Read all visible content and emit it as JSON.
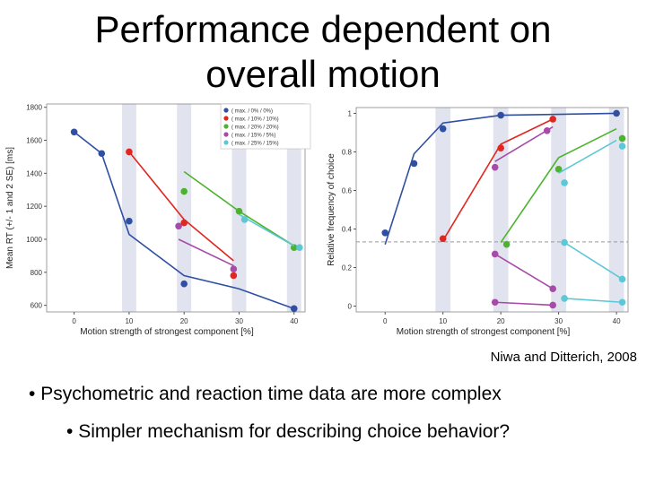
{
  "slide": {
    "title_line1": "Performance dependent on",
    "title_line2": "overall motion",
    "citation": "Niwa and Ditterich, 2008",
    "bullet1": "Psychometric and reaction time data are more complex",
    "bullet2": "Simpler mechanism for describing choice behavior?",
    "bullet_char": "•"
  },
  "colors": {
    "blue": "#2f4fa3",
    "red": "#e0261f",
    "green": "#4cb32e",
    "magenta": "#a84aa8",
    "cyan": "#5cc7d6",
    "band": "#e1e4ee"
  },
  "chart_data": [
    {
      "type": "line",
      "title": "",
      "xlabel": "Motion strength of strongest component [%]",
      "ylabel": "Mean RT (+/- 1 and 2 SE) [ms]",
      "xlim": [
        -5,
        42
      ],
      "ylim": [
        560,
        1820
      ],
      "xticks": [
        0,
        10,
        20,
        30,
        40
      ],
      "yticks": [
        600,
        800,
        1000,
        1200,
        1400,
        1600,
        1800
      ],
      "bands": [
        10,
        20,
        30,
        40
      ],
      "legend": [
        "( max. /  0% /  0%)",
        "( max. / 10% / 10%)",
        "( max. / 20% / 20%)",
        "( max. / 15% /  5%)",
        "( max. / 25% / 15%)"
      ],
      "series": [
        {
          "name": "blue",
          "color_key": "blue",
          "line_x": [
            0,
            5,
            10,
            20,
            30,
            40
          ],
          "line_y": [
            1650,
            1520,
            1030,
            780,
            700,
            580
          ],
          "points_x": [
            0,
            5,
            10,
            20,
            40
          ],
          "points_y": [
            1650,
            1520,
            1110,
            730,
            580
          ]
        },
        {
          "name": "red",
          "color_key": "red",
          "line_x": [
            10,
            20,
            29
          ],
          "line_y": [
            1530,
            1120,
            870
          ],
          "points_x": [
            10,
            20,
            29
          ],
          "points_y": [
            1530,
            1100,
            780
          ]
        },
        {
          "name": "green",
          "color_key": "green",
          "line_x": [
            20,
            30,
            40
          ],
          "line_y": [
            1410,
            1170,
            960
          ],
          "points_x": [
            20,
            30,
            40
          ],
          "points_y": [
            1290,
            1170,
            950
          ]
        },
        {
          "name": "magenta",
          "color_key": "magenta",
          "line_x": [
            19,
            29
          ],
          "line_y": [
            1000,
            840
          ],
          "points_x": [
            19,
            29
          ],
          "points_y": [
            1080,
            820
          ]
        },
        {
          "name": "cyan",
          "color_key": "cyan",
          "line_x": [
            30,
            40
          ],
          "line_y": [
            1150,
            960
          ],
          "points_x": [
            31,
            41
          ],
          "points_y": [
            1120,
            950
          ]
        }
      ]
    },
    {
      "type": "line",
      "title": "",
      "xlabel": "Motion strength of strongest component [%]",
      "ylabel": "Relative frequency of choice",
      "xlim": [
        -5,
        42
      ],
      "ylim": [
        -0.03,
        1.03
      ],
      "xticks": [
        0,
        10,
        20,
        30,
        40
      ],
      "yticks": [
        0,
        0.2,
        0.4,
        0.6,
        0.8,
        1
      ],
      "chance_level": 0.333,
      "bands": [
        10,
        20,
        30,
        40
      ],
      "series": [
        {
          "name": "blue",
          "color_key": "blue",
          "line_x": [
            0,
            5,
            10,
            20,
            30,
            40
          ],
          "line_y": [
            0.32,
            0.79,
            0.95,
            0.99,
            0.995,
            1.0
          ],
          "points_x": [
            0,
            5,
            10,
            20,
            40
          ],
          "points_y": [
            0.38,
            0.74,
            0.92,
            0.99,
            1.0
          ]
        },
        {
          "name": "red-high",
          "color_key": "red",
          "line_x": [
            10,
            20,
            29
          ],
          "line_y": [
            0.34,
            0.84,
            0.97
          ],
          "points_x": [
            10,
            20,
            29
          ],
          "points_y": [
            0.35,
            0.82,
            0.97
          ]
        },
        {
          "name": "green-high",
          "color_key": "green",
          "line_x": [
            20,
            30,
            40
          ],
          "line_y": [
            0.33,
            0.77,
            0.92
          ],
          "points_x": [
            21,
            30,
            41
          ],
          "points_y": [
            0.32,
            0.71,
            0.87
          ]
        },
        {
          "name": "magenta-high",
          "color_key": "magenta",
          "line_x": [
            19,
            29
          ],
          "line_y": [
            0.75,
            0.93
          ],
          "points_x": [
            19,
            28
          ],
          "points_y": [
            0.72,
            0.91
          ]
        },
        {
          "name": "cyan-high",
          "color_key": "cyan",
          "line_x": [
            30,
            40
          ],
          "line_y": [
            0.69,
            0.86
          ],
          "points_x": [
            31,
            41
          ],
          "points_y": [
            0.64,
            0.83
          ]
        },
        {
          "name": "magenta-low",
          "color_key": "magenta",
          "line_x": [
            19,
            29
          ],
          "line_y": [
            0.27,
            0.09
          ],
          "points_x": [
            19,
            29
          ],
          "points_y": [
            0.27,
            0.09
          ]
        },
        {
          "name": "magenta-lowest",
          "color_key": "magenta",
          "line_x": [
            19,
            29
          ],
          "line_y": [
            0.02,
            0.005
          ],
          "points_x": [
            19,
            29
          ],
          "points_y": [
            0.02,
            0.005
          ]
        },
        {
          "name": "cyan-low",
          "color_key": "cyan",
          "line_x": [
            31,
            41
          ],
          "line_y": [
            0.33,
            0.14
          ],
          "points_x": [
            31,
            41
          ],
          "points_y": [
            0.33,
            0.14
          ]
        },
        {
          "name": "cyan-lowest",
          "color_key": "cyan",
          "line_x": [
            31,
            41
          ],
          "line_y": [
            0.04,
            0.02
          ],
          "points_x": [
            31,
            41
          ],
          "points_y": [
            0.04,
            0.02
          ]
        }
      ]
    }
  ]
}
